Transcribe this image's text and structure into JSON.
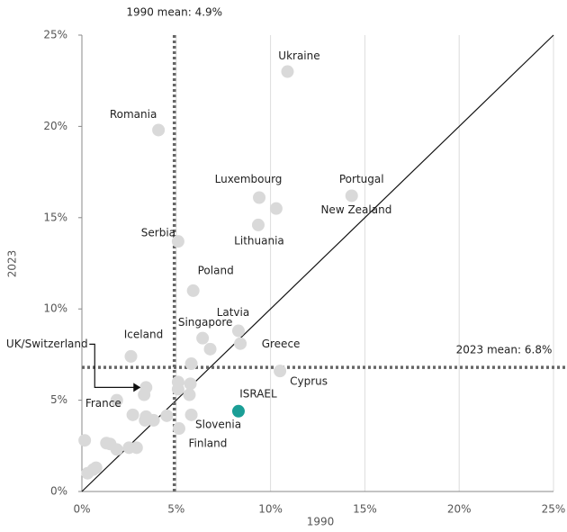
{
  "chart_data": {
    "type": "scatter",
    "xlabel": "1990",
    "ylabel": "2023",
    "xlim": [
      0,
      25
    ],
    "ylim": [
      0,
      25
    ],
    "xticks": [
      {
        "value": 0,
        "label": "0%"
      },
      {
        "value": 5,
        "label": "5%"
      },
      {
        "value": 10,
        "label": "10%"
      },
      {
        "value": 15,
        "label": "15%"
      },
      {
        "value": 20,
        "label": "20%"
      },
      {
        "value": 25,
        "label": "25%"
      }
    ],
    "yticks": [
      {
        "value": 0,
        "label": "0%"
      },
      {
        "value": 5,
        "label": "5%"
      },
      {
        "value": 10,
        "label": "10%"
      },
      {
        "value": 15,
        "label": "15%"
      },
      {
        "value": 20,
        "label": "20%"
      },
      {
        "value": 25,
        "label": "25%"
      }
    ],
    "grid": "x",
    "diagonal": true,
    "reference_lines": [
      {
        "axis": "x",
        "value": 4.9,
        "label": "1990 mean: 4.9%"
      },
      {
        "axis": "y",
        "value": 6.8,
        "label": "2023 mean: 6.8%"
      }
    ],
    "series": [
      {
        "color": "#d9d9d9",
        "x": [
          10.9,
          4.06,
          9.4,
          14.3,
          10.3,
          9.35,
          5.1,
          5.9,
          8.3,
          8.4,
          6.4,
          2.6,
          10.5,
          3.4,
          5.8,
          5.15,
          1.85,
          6.8,
          5.8,
          3.3,
          0.15,
          0.3,
          0.6,
          0.75,
          1.3,
          1.5,
          1.85,
          2.7,
          2.5,
          2.9,
          3.35,
          3.4,
          3.8,
          4.5,
          5.1,
          5.1,
          5.7,
          5.75
        ],
        "y": [
          23.0,
          19.8,
          16.1,
          16.2,
          15.5,
          14.6,
          13.7,
          11.0,
          8.8,
          8.1,
          8.4,
          7.4,
          6.6,
          5.7,
          4.2,
          3.45,
          5.0,
          7.8,
          7.0,
          5.3,
          2.8,
          1.0,
          1.2,
          1.3,
          2.65,
          2.6,
          2.3,
          4.2,
          2.4,
          2.4,
          3.9,
          4.1,
          3.9,
          4.15,
          6.0,
          5.6,
          5.3,
          5.9
        ],
        "labels": [
          "Ukraine",
          "Romania",
          "Luxembourg",
          "Portugal",
          "New Zealand",
          "Lithuania",
          "Serbia",
          "Poland",
          "Latvia",
          "Greece",
          "Singapore",
          "Iceland",
          "Cyprus",
          "UK/Switzerland",
          "Slovenia",
          "Finland",
          "France",
          null,
          null,
          null,
          null,
          null,
          null,
          null,
          null,
          null,
          null,
          null,
          null,
          null,
          null,
          null,
          null,
          null,
          null,
          null,
          null,
          null
        ]
      },
      {
        "color": "#1a9e96",
        "x": [
          8.3
        ],
        "y": [
          4.4
        ],
        "labels": [
          "ISRAEL"
        ]
      }
    ]
  }
}
